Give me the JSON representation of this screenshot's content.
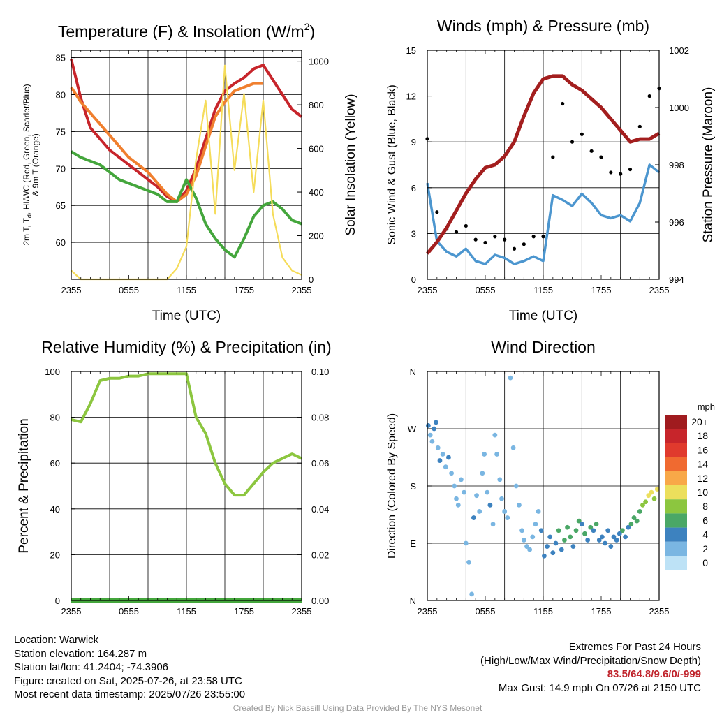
{
  "time_ticks": [
    "2355",
    "0555",
    "1155",
    "1755",
    "2355"
  ],
  "colors": {
    "red": "#c7252b",
    "orange": "#f07f2e",
    "green": "#44a63c",
    "yellow": "#f5dc5a",
    "blue": "#4c96cf",
    "black": "#000000",
    "maroon": "#a31e1e",
    "rh_green": "#8cc63f"
  },
  "chart_data": [
    {
      "id": "temp",
      "type": "line",
      "title_main": "Temperature (F) & Insolation (W/m",
      "title_sup": "2",
      "title_end": ")",
      "xlabel": "Time (UTC)",
      "ylabel_lines": [
        "2m T, T",
        "d",
        ", HI/WC (Red, Green, Scarlet/Blue)",
        "& 9m T (Orange)"
      ],
      "y2label": "Solar Insolation (Yellow)",
      "ylim": [
        55,
        86
      ],
      "yticks": [
        60,
        65,
        70,
        75,
        80,
        85
      ],
      "y2lim": [
        0,
        1050
      ],
      "y2ticks": [
        0,
        200,
        400,
        600,
        800,
        1000
      ],
      "x": [
        0,
        1,
        2,
        3,
        4,
        5,
        6,
        7,
        8,
        9,
        10,
        11,
        12,
        13,
        14,
        15,
        16,
        17,
        18,
        19,
        20,
        21,
        22,
        23,
        24
      ],
      "series": [
        {
          "key": "t2m",
          "color_key": "red",
          "axis": "y",
          "values": [
            84.8,
            79.5,
            75.5,
            74.0,
            72.5,
            71.5,
            70.5,
            69.5,
            68.5,
            67.5,
            66.2,
            65.5,
            67.0,
            70.0,
            74.0,
            78.0,
            80.5,
            81.5,
            82.3,
            83.5,
            84.0,
            82.0,
            80.0,
            78.0,
            77.0
          ]
        },
        {
          "key": "t9m",
          "color_key": "orange",
          "axis": "y",
          "values": [
            81.0,
            79.0,
            77.5,
            76.0,
            74.5,
            73.0,
            71.5,
            70.5,
            69.5,
            68.0,
            66.5,
            65.5,
            66.5,
            69.0,
            73.0,
            77.0,
            79.0,
            80.5,
            81.0,
            81.5,
            81.5,
            null,
            null,
            null,
            null
          ]
        },
        {
          "key": "td",
          "color_key": "green",
          "axis": "y",
          "values": [
            72.3,
            71.5,
            71.0,
            70.5,
            69.5,
            68.5,
            68.0,
            67.5,
            67.0,
            66.5,
            65.5,
            65.5,
            68.5,
            66.0,
            62.5,
            60.5,
            59.0,
            58.0,
            60.5,
            63.5,
            65.0,
            65.5,
            64.5,
            63.0,
            62.5
          ]
        },
        {
          "key": "solar",
          "color_key": "yellow",
          "axis": "y2",
          "values": [
            40,
            0,
            0,
            0,
            0,
            0,
            0,
            0,
            0,
            0,
            0,
            50,
            150,
            550,
            820,
            300,
            980,
            500,
            850,
            400,
            820,
            300,
            100,
            40,
            20
          ]
        }
      ]
    },
    {
      "id": "winds",
      "type": "line",
      "title_main": "Winds (mph) & Pressure (mb)",
      "xlabel": "Time (UTC)",
      "ylabel": "Sonic Wind & Gust (Blue, Black)",
      "y2label": "Station Pressure (Maroon)",
      "ylim": [
        0,
        15
      ],
      "yticks": [
        0,
        3,
        6,
        9,
        12,
        15
      ],
      "y2lim": [
        994,
        1002
      ],
      "y2ticks": [
        994,
        996,
        998,
        1000,
        1002
      ],
      "x": [
        0,
        1,
        2,
        3,
        4,
        5,
        6,
        7,
        8,
        9,
        10,
        11,
        12,
        13,
        14,
        15,
        16,
        17,
        18,
        19,
        20,
        21,
        22,
        23,
        24
      ],
      "series": [
        {
          "key": "pressure",
          "color_key": "maroon",
          "axis": "y2",
          "values": [
            994.9,
            995.3,
            995.8,
            996.4,
            997.0,
            997.5,
            997.9,
            998.0,
            998.3,
            998.8,
            999.7,
            1000.5,
            1001.0,
            1001.1,
            1001.1,
            1000.8,
            1000.6,
            1000.3,
            1000.0,
            999.6,
            999.2,
            998.8,
            998.9,
            998.9,
            999.1
          ]
        },
        {
          "key": "wind",
          "color_key": "blue",
          "axis": "y",
          "values": [
            6.3,
            2.5,
            1.8,
            1.5,
            2.0,
            1.2,
            1.0,
            1.6,
            1.4,
            1.0,
            1.2,
            1.5,
            1.2,
            5.5,
            5.2,
            4.8,
            5.6,
            5.0,
            4.2,
            4.0,
            4.2,
            3.8,
            5.0,
            7.5,
            7.0
          ]
        },
        {
          "key": "gust",
          "color_key": "black",
          "axis": "y",
          "values": [
            9.2,
            4.4,
            3.3,
            3.1,
            3.5,
            2.6,
            2.4,
            2.8,
            2.6,
            2.0,
            2.3,
            2.8,
            2.8,
            8.0,
            11.5,
            9.0,
            9.5,
            8.4,
            8.0,
            7.0,
            6.9,
            7.2,
            10.0,
            12.0,
            12.5
          ]
        }
      ]
    },
    {
      "id": "rh",
      "type": "line",
      "title_main": "Relative Humidity (%) & Precipitation (in)",
      "ylabel": "Percent & Precipitation",
      "ylim": [
        0,
        100
      ],
      "yticks": [
        0,
        20,
        40,
        60,
        80,
        100
      ],
      "y2lim": [
        0,
        0.1
      ],
      "y2ticks": [
        "0.00",
        "0.02",
        "0.04",
        "0.06",
        "0.08",
        "0.10"
      ],
      "x": [
        0,
        1,
        2,
        3,
        4,
        5,
        6,
        7,
        8,
        9,
        10,
        11,
        12,
        13,
        14,
        15,
        16,
        17,
        18,
        19,
        20,
        21,
        22,
        23,
        24
      ],
      "series": [
        {
          "key": "rh",
          "color_key": "rh_green",
          "axis": "y",
          "values": [
            79,
            78,
            86,
            96,
            97,
            97,
            98,
            98,
            99,
            99,
            99,
            99,
            99,
            80,
            73,
            60,
            51,
            46,
            46,
            51,
            56,
            60,
            62,
            64,
            62
          ]
        },
        {
          "key": "precip",
          "color_key": "green",
          "axis": "y2",
          "values": [
            0,
            0,
            0,
            0,
            0,
            0,
            0,
            0,
            0,
            0,
            0,
            0,
            0,
            0,
            0,
            0,
            0,
            0,
            0,
            0,
            0,
            0,
            0,
            0,
            0
          ]
        }
      ]
    },
    {
      "id": "wdir",
      "type": "scatter",
      "title_main": "Wind Direction",
      "ylabel": "Direction (Colored By Speed)",
      "yticks": [
        "N",
        "E",
        "S",
        "W",
        "N"
      ],
      "ylim": [
        0,
        360
      ],
      "legend_unit": "mph",
      "legend_labels": [
        "20+",
        "18",
        "16",
        "14",
        "12",
        "10",
        "8",
        "6",
        "4",
        "2",
        "0"
      ],
      "legend_colors": [
        "#a01b1f",
        "#c7252b",
        "#e03a2d",
        "#f06a30",
        "#f8a848",
        "#ecdf5c",
        "#8cc63f",
        "#4aa766",
        "#3d82bf",
        "#7ab6e2",
        "#bde2f6"
      ],
      "points": [
        [
          0.1,
          275,
          3
        ],
        [
          0.3,
          260,
          2
        ],
        [
          0.5,
          250,
          1
        ],
        [
          0.7,
          270,
          3
        ],
        [
          0.9,
          280,
          4
        ],
        [
          1.1,
          240,
          2
        ],
        [
          1.3,
          220,
          3
        ],
        [
          1.6,
          230,
          2
        ],
        [
          1.9,
          210,
          1
        ],
        [
          2.2,
          225,
          3
        ],
        [
          2.5,
          200,
          1
        ],
        [
          2.8,
          180,
          2
        ],
        [
          3.0,
          160,
          1
        ],
        [
          3.2,
          150,
          2
        ],
        [
          3.5,
          190,
          1
        ],
        [
          3.8,
          170,
          2
        ],
        [
          4.0,
          90,
          1
        ],
        [
          4.3,
          60,
          1
        ],
        [
          4.6,
          10,
          2
        ],
        [
          4.8,
          130,
          3
        ],
        [
          5.1,
          165,
          2
        ],
        [
          5.4,
          140,
          1
        ],
        [
          5.7,
          200,
          2
        ],
        [
          5.9,
          230,
          1
        ],
        [
          6.2,
          170,
          2
        ],
        [
          6.5,
          150,
          3
        ],
        [
          6.8,
          120,
          1
        ],
        [
          7.0,
          260,
          2
        ],
        [
          7.2,
          230,
          1
        ],
        [
          7.5,
          190,
          1
        ],
        [
          7.7,
          160,
          2
        ],
        [
          8.0,
          140,
          1
        ],
        [
          8.3,
          130,
          2
        ],
        [
          8.6,
          350,
          1
        ],
        [
          8.9,
          240,
          1
        ],
        [
          9.2,
          180,
          1
        ],
        [
          9.5,
          150,
          2
        ],
        [
          9.8,
          110,
          1
        ],
        [
          10.0,
          95,
          1
        ],
        [
          10.3,
          85,
          2
        ],
        [
          10.6,
          80,
          2
        ],
        [
          10.9,
          100,
          1
        ],
        [
          11.2,
          120,
          2
        ],
        [
          11.5,
          140,
          1
        ],
        [
          11.8,
          110,
          3
        ],
        [
          12.1,
          70,
          3
        ],
        [
          12.4,
          85,
          4
        ],
        [
          12.7,
          100,
          3
        ],
        [
          13.0,
          75,
          4
        ],
        [
          13.3,
          90,
          4
        ],
        [
          13.6,
          110,
          5
        ],
        [
          13.9,
          80,
          4
        ],
        [
          14.2,
          95,
          6
        ],
        [
          14.5,
          115,
          5
        ],
        [
          14.8,
          100,
          6
        ],
        [
          15.1,
          85,
          4
        ],
        [
          15.4,
          110,
          5
        ],
        [
          15.7,
          125,
          6
        ],
        [
          16.0,
          120,
          4
        ],
        [
          16.3,
          105,
          5
        ],
        [
          16.6,
          95,
          4
        ],
        [
          16.9,
          115,
          6
        ],
        [
          17.2,
          110,
          4
        ],
        [
          17.5,
          120,
          5
        ],
        [
          17.8,
          95,
          4
        ],
        [
          18.1,
          100,
          3
        ],
        [
          18.4,
          90,
          4
        ],
        [
          18.7,
          110,
          4
        ],
        [
          19.0,
          85,
          3
        ],
        [
          19.3,
          100,
          4
        ],
        [
          19.6,
          95,
          4
        ],
        [
          19.9,
          105,
          4
        ],
        [
          20.2,
          110,
          5
        ],
        [
          20.5,
          100,
          4
        ],
        [
          20.8,
          115,
          4
        ],
        [
          21.1,
          120,
          5
        ],
        [
          21.4,
          130,
          6
        ],
        [
          21.7,
          125,
          5
        ],
        [
          22.0,
          140,
          6
        ],
        [
          22.3,
          150,
          7
        ],
        [
          22.6,
          155,
          8
        ],
        [
          22.9,
          165,
          9
        ],
        [
          23.2,
          170,
          10
        ],
        [
          23.5,
          160,
          8
        ],
        [
          23.8,
          175,
          9
        ]
      ]
    }
  ],
  "info": {
    "location": "Location: Warwick",
    "elevation": "Station elevation: 164.287 m",
    "latlon": "Station lat/lon: 41.2404; -74.3906",
    "created": "Figure created on Sat, 2025-07-26, at 23:58 UTC",
    "latest": "Most recent data timestamp: 2025/07/26 23:55:00"
  },
  "extremes": {
    "title": "Extremes For Past 24 Hours",
    "subtitle": "(High/Low/Max Wind/Precipitation/Snow Depth)",
    "values": "83.5/64.8/9.6/0/-999",
    "gust": "Max Gust: 14.9 mph On 07/26 at 2150 UTC"
  },
  "credit": "Created By Nick Bassill Using Data Provided By The NYS Mesonet"
}
